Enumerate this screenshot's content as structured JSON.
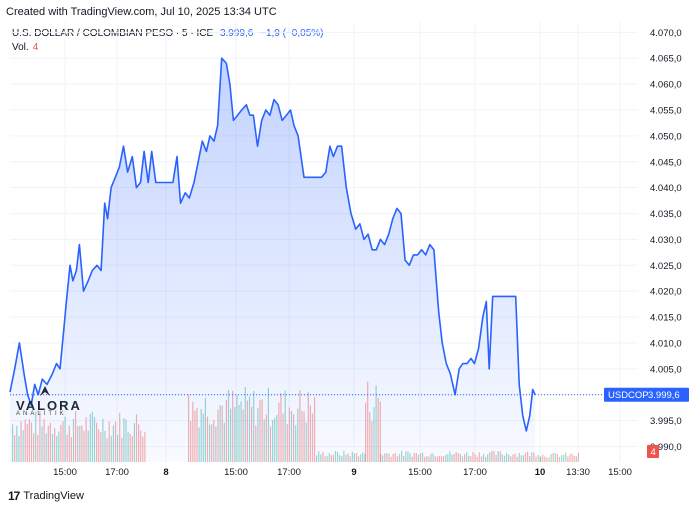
{
  "header": {
    "created_text": "Created with TradingView.com, Jul 10, 2025 13:34 UTC"
  },
  "legend": {
    "symbol": "U.S. DOLLAR / COLOMBIAN PESO · 5 · ICE",
    "last": "3.999,6",
    "change": "−1,9 (−0,05%)"
  },
  "volume": {
    "label": "Vol.",
    "value": "4"
  },
  "price_tag": {
    "symbol": "USDCOP",
    "value": "3.999,6"
  },
  "volume_tag": "4",
  "watermark": {
    "brand": "VALORA",
    "sub": "ANALITIK"
  },
  "footer": {
    "brand": "TradingView"
  },
  "colors": {
    "line": "#2962ff",
    "vol_up": "#26a69a",
    "vol_down": "#ef5350",
    "grid": "#f0f3fa"
  },
  "chart_data": {
    "type": "area",
    "title": "U.S. DOLLAR / COLOMBIAN PESO · 5 · ICE",
    "xlabel": "",
    "ylabel": "",
    "x_ticks": [
      "15:00",
      "17:00",
      "8",
      "15:00",
      "17:00",
      "9",
      "15:00",
      "17:00",
      "10",
      "13:30",
      "15:00"
    ],
    "y_ticks": [
      "4.070,0",
      "4.065,0",
      "4.060,0",
      "4.055,0",
      "4.050,0",
      "4.045,0",
      "4.040,0",
      "4.035,0",
      "4.030,0",
      "4.025,0",
      "4.020,0",
      "4.015,0",
      "4.010,0",
      "4.005,0",
      "4.000,0",
      "3.995,0",
      "3.990,0"
    ],
    "ylim": [
      3987,
      4072
    ],
    "xlim": [
      0,
      100
    ],
    "grid": true,
    "series": [
      {
        "values": [
          [
            0.0,
            4000.5
          ],
          [
            0.8,
            4005
          ],
          [
            1.6,
            4010
          ],
          [
            2.4,
            4004
          ],
          [
            3.0,
            4000
          ],
          [
            3.6,
            3998
          ],
          [
            4.2,
            4002
          ],
          [
            4.8,
            4000
          ],
          [
            5.5,
            4003
          ],
          [
            6.3,
            4002
          ],
          [
            7.2,
            4004
          ],
          [
            7.9,
            4006
          ],
          [
            8.5,
            4005
          ],
          [
            9.1,
            4012
          ],
          [
            9.6,
            4018
          ],
          [
            10.2,
            4025
          ],
          [
            10.7,
            4022
          ],
          [
            11.3,
            4024
          ],
          [
            11.8,
            4029
          ],
          [
            12.5,
            4020
          ],
          [
            13.3,
            4022
          ],
          [
            14.0,
            4024
          ],
          [
            14.8,
            4025
          ],
          [
            15.5,
            4024
          ],
          [
            16.1,
            4037
          ],
          [
            16.6,
            4034
          ],
          [
            17.2,
            4040
          ],
          [
            17.9,
            4042
          ],
          [
            18.6,
            4044
          ],
          [
            19.3,
            4048
          ],
          [
            20.0,
            4043
          ],
          [
            20.8,
            4046
          ],
          [
            21.5,
            4040
          ],
          [
            22.2,
            4041
          ],
          [
            22.8,
            4047
          ],
          [
            23.5,
            4041
          ],
          [
            24.1,
            4047
          ],
          [
            24.8,
            4041
          ],
          [
            25.5,
            4041
          ],
          [
            26.2,
            4041
          ],
          [
            27.0,
            4041
          ],
          [
            27.7,
            4041
          ],
          [
            28.4,
            4046
          ],
          [
            29.0,
            4037
          ],
          [
            29.8,
            4039
          ],
          [
            30.5,
            4038
          ],
          [
            31.3,
            4041
          ],
          [
            32.0,
            4045
          ],
          [
            32.7,
            4049
          ],
          [
            33.4,
            4047
          ],
          [
            34.0,
            4050
          ],
          [
            34.7,
            4049
          ],
          [
            35.3,
            4052
          ],
          [
            36.0,
            4065
          ],
          [
            36.8,
            4064
          ],
          [
            37.4,
            4060
          ],
          [
            38.0,
            4053
          ],
          [
            38.7,
            4054
          ],
          [
            39.4,
            4055
          ],
          [
            40.2,
            4056
          ],
          [
            40.8,
            4054
          ],
          [
            41.4,
            4054
          ],
          [
            42.1,
            4048
          ],
          [
            42.8,
            4053
          ],
          [
            43.5,
            4055
          ],
          [
            44.2,
            4054
          ],
          [
            44.9,
            4057
          ],
          [
            45.6,
            4056
          ],
          [
            46.3,
            4053
          ],
          [
            47.0,
            4054
          ],
          [
            47.7,
            4055
          ],
          [
            48.3,
            4052
          ],
          [
            49.0,
            4050
          ],
          [
            50.0,
            4042
          ],
          [
            51.0,
            4042
          ],
          [
            52.0,
            4042
          ],
          [
            53.0,
            4042
          ],
          [
            53.7,
            4043
          ],
          [
            54.4,
            4048
          ],
          [
            55.0,
            4046
          ],
          [
            55.7,
            4048
          ],
          [
            56.4,
            4048
          ],
          [
            57.2,
            4040
          ],
          [
            58.0,
            4035
          ],
          [
            58.8,
            4032
          ],
          [
            59.5,
            4033
          ],
          [
            60.2,
            4030
          ],
          [
            60.9,
            4031
          ],
          [
            61.6,
            4028
          ],
          [
            62.3,
            4028
          ],
          [
            63.0,
            4030
          ],
          [
            63.7,
            4029
          ],
          [
            64.4,
            4031
          ],
          [
            65.1,
            4034
          ],
          [
            65.8,
            4036
          ],
          [
            66.5,
            4035
          ],
          [
            67.2,
            4026
          ],
          [
            67.9,
            4025
          ],
          [
            68.6,
            4027
          ],
          [
            69.3,
            4027
          ],
          [
            70.0,
            4028
          ],
          [
            70.7,
            4027
          ],
          [
            71.4,
            4029
          ],
          [
            72.1,
            4028
          ],
          [
            72.9,
            4016
          ],
          [
            73.5,
            4010
          ],
          [
            74.2,
            4006
          ],
          [
            74.9,
            4004
          ],
          [
            75.7,
            4000
          ],
          [
            76.4,
            4005
          ],
          [
            77.0,
            4006
          ],
          [
            77.7,
            4006
          ],
          [
            78.4,
            4007
          ],
          [
            79.0,
            4006
          ],
          [
            79.7,
            4009
          ],
          [
            80.4,
            4015
          ],
          [
            81.0,
            4018
          ],
          [
            81.5,
            4005
          ],
          [
            82.1,
            4019
          ],
          [
            83.0,
            4019
          ],
          [
            84.0,
            4019
          ],
          [
            85.0,
            4019
          ],
          [
            86.0,
            4019
          ],
          [
            86.6,
            4002
          ],
          [
            87.2,
            3996
          ],
          [
            87.8,
            3993
          ],
          [
            88.4,
            3996
          ],
          [
            88.9,
            4001
          ],
          [
            89.3,
            4000
          ]
        ]
      }
    ],
    "volume": {
      "label": "Vol.",
      "last": 4
    }
  }
}
